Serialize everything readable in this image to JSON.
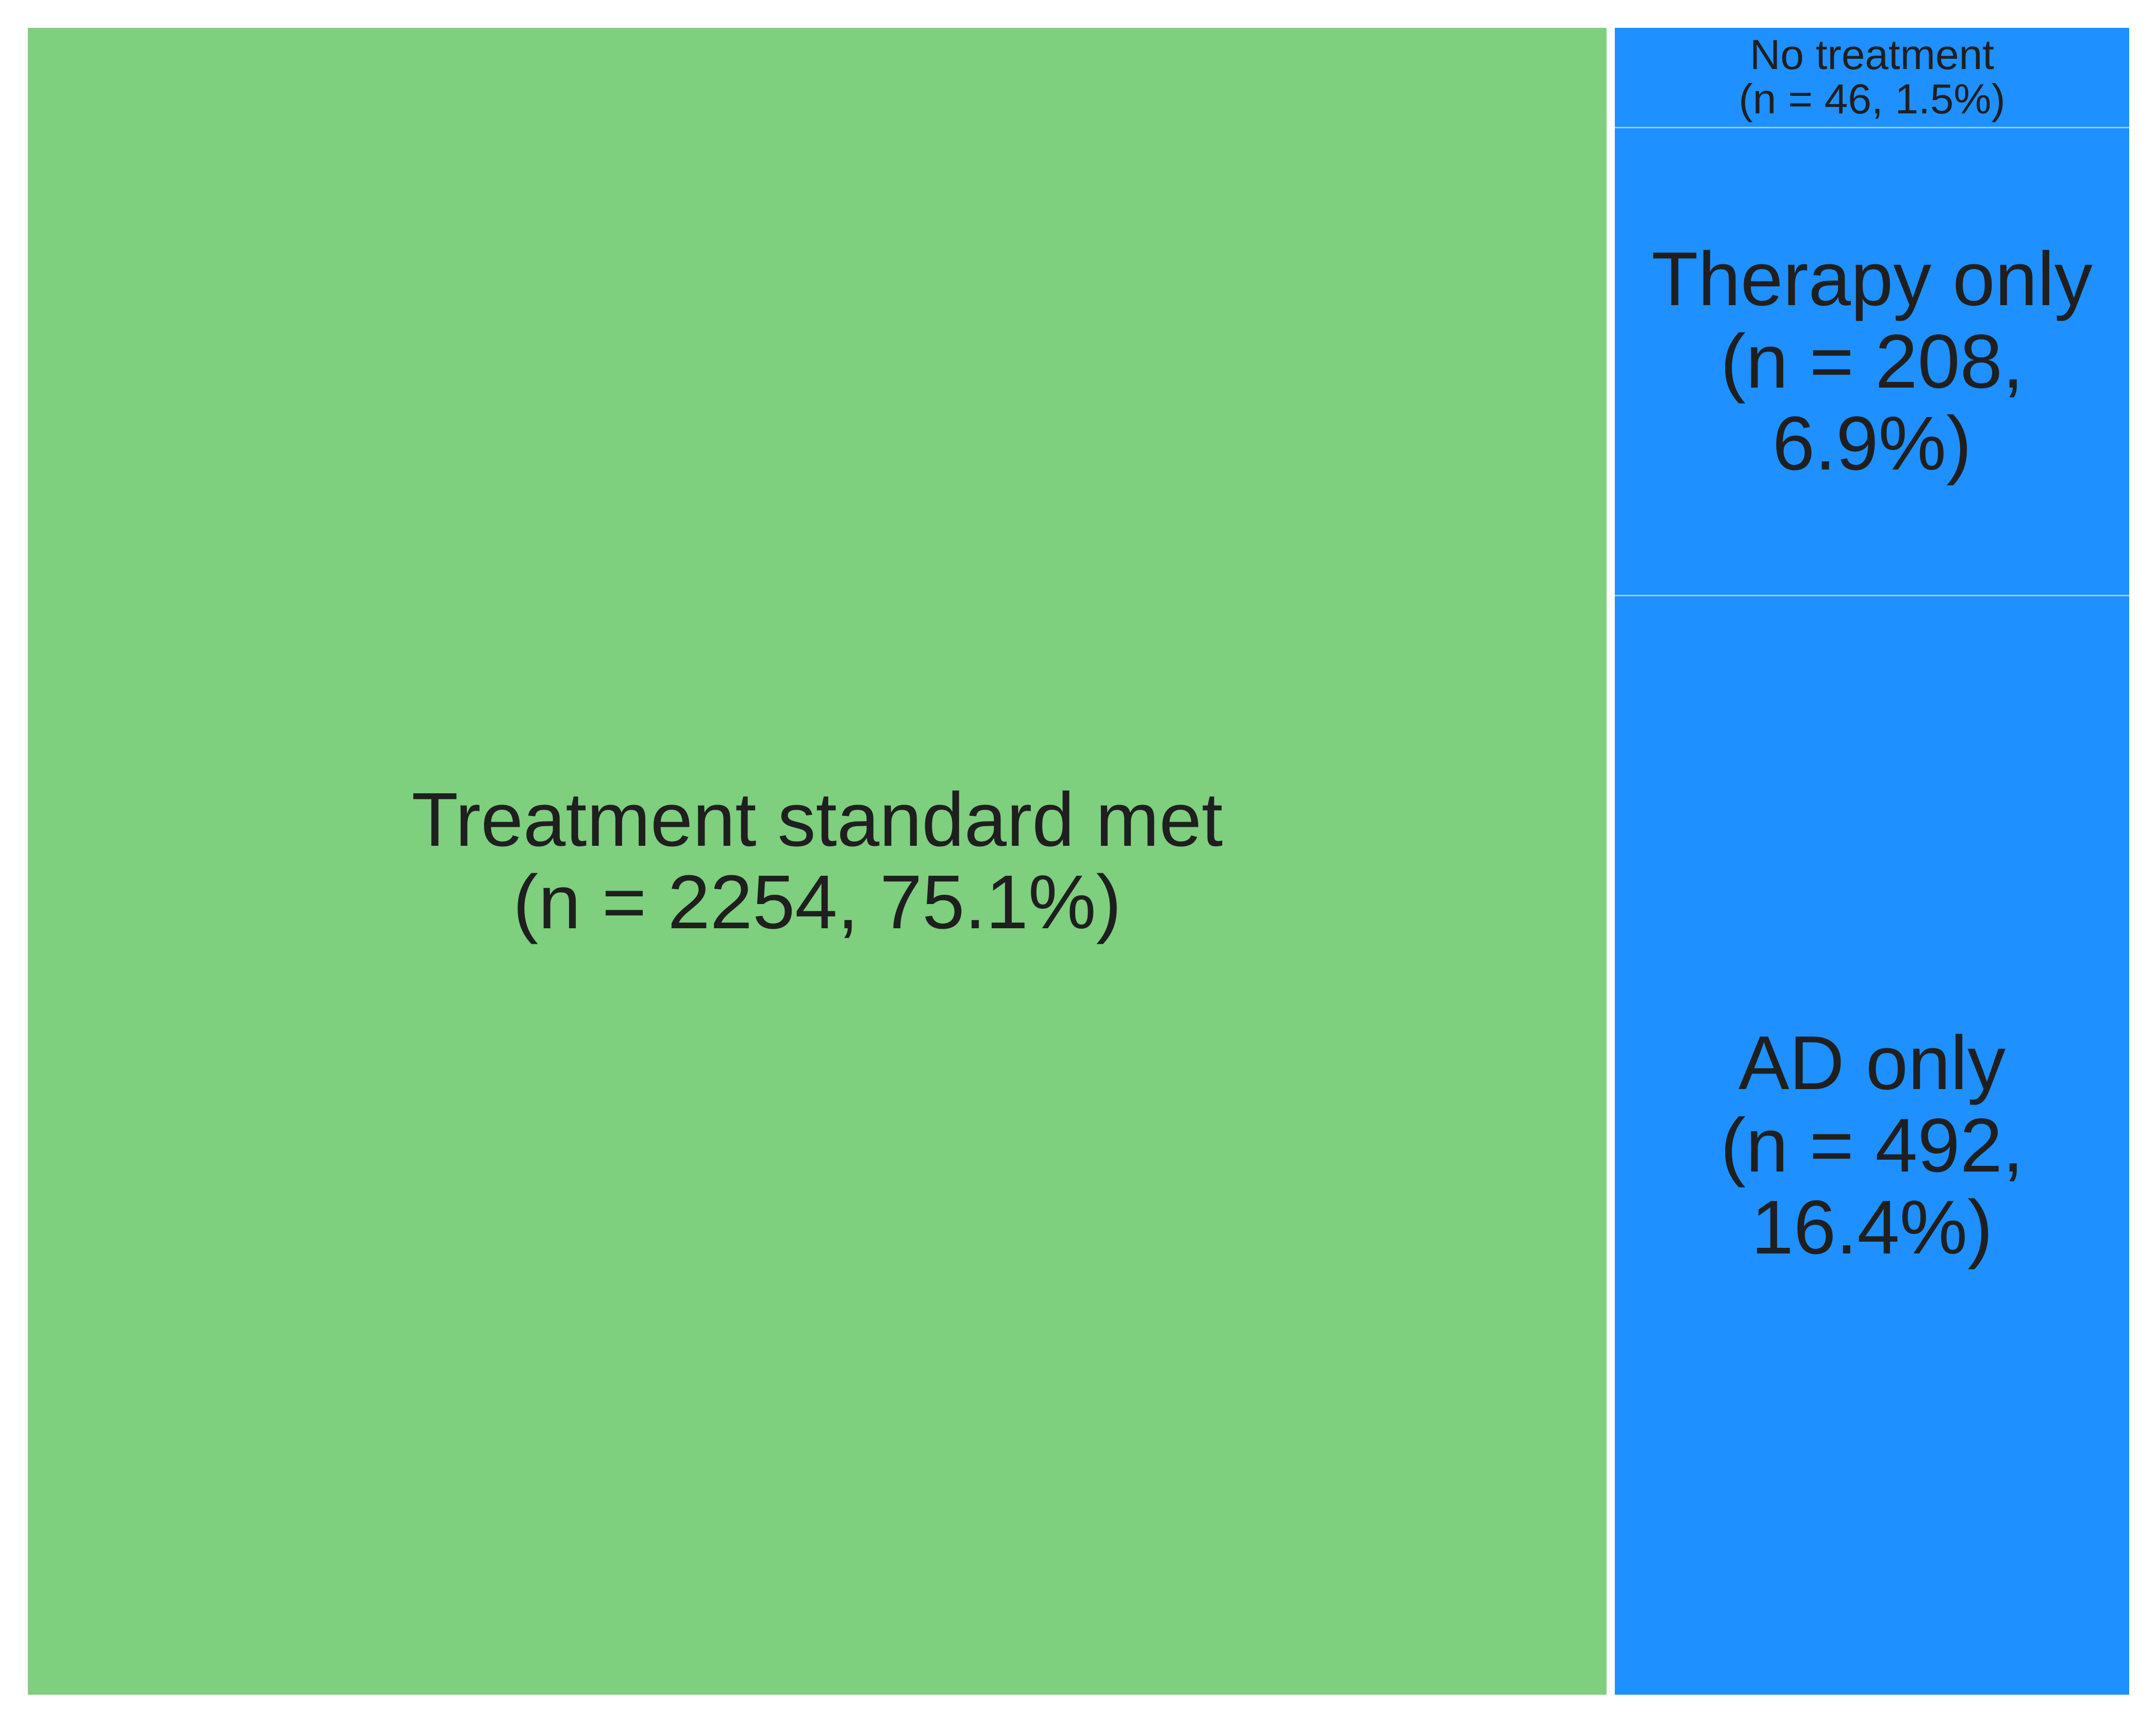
{
  "chart_data": {
    "type": "treemap",
    "colors": {
      "green": "#7ecf7e",
      "blue": "#1e90ff",
      "label": "#1f1f1f"
    },
    "items": [
      {
        "name": "Treatment standard met",
        "n": 2254,
        "percent": 75.1,
        "color": "#7ecf7e",
        "label": "Treatment standard met\n(n = 2254, 75.1%)"
      },
      {
        "name": "No treatment",
        "n": 46,
        "percent": 1.5,
        "color": "#1e90ff",
        "label": "No treatment\n(n = 46, 1.5%)"
      },
      {
        "name": "Therapy only",
        "n": 208,
        "percent": 6.9,
        "color": "#1e90ff",
        "label": "Therapy only\n(n = 208,\n6.9%)"
      },
      {
        "name": "AD only",
        "n": 492,
        "percent": 16.4,
        "color": "#1e90ff",
        "label": "AD only\n(n = 492,\n16.4%)"
      }
    ]
  }
}
